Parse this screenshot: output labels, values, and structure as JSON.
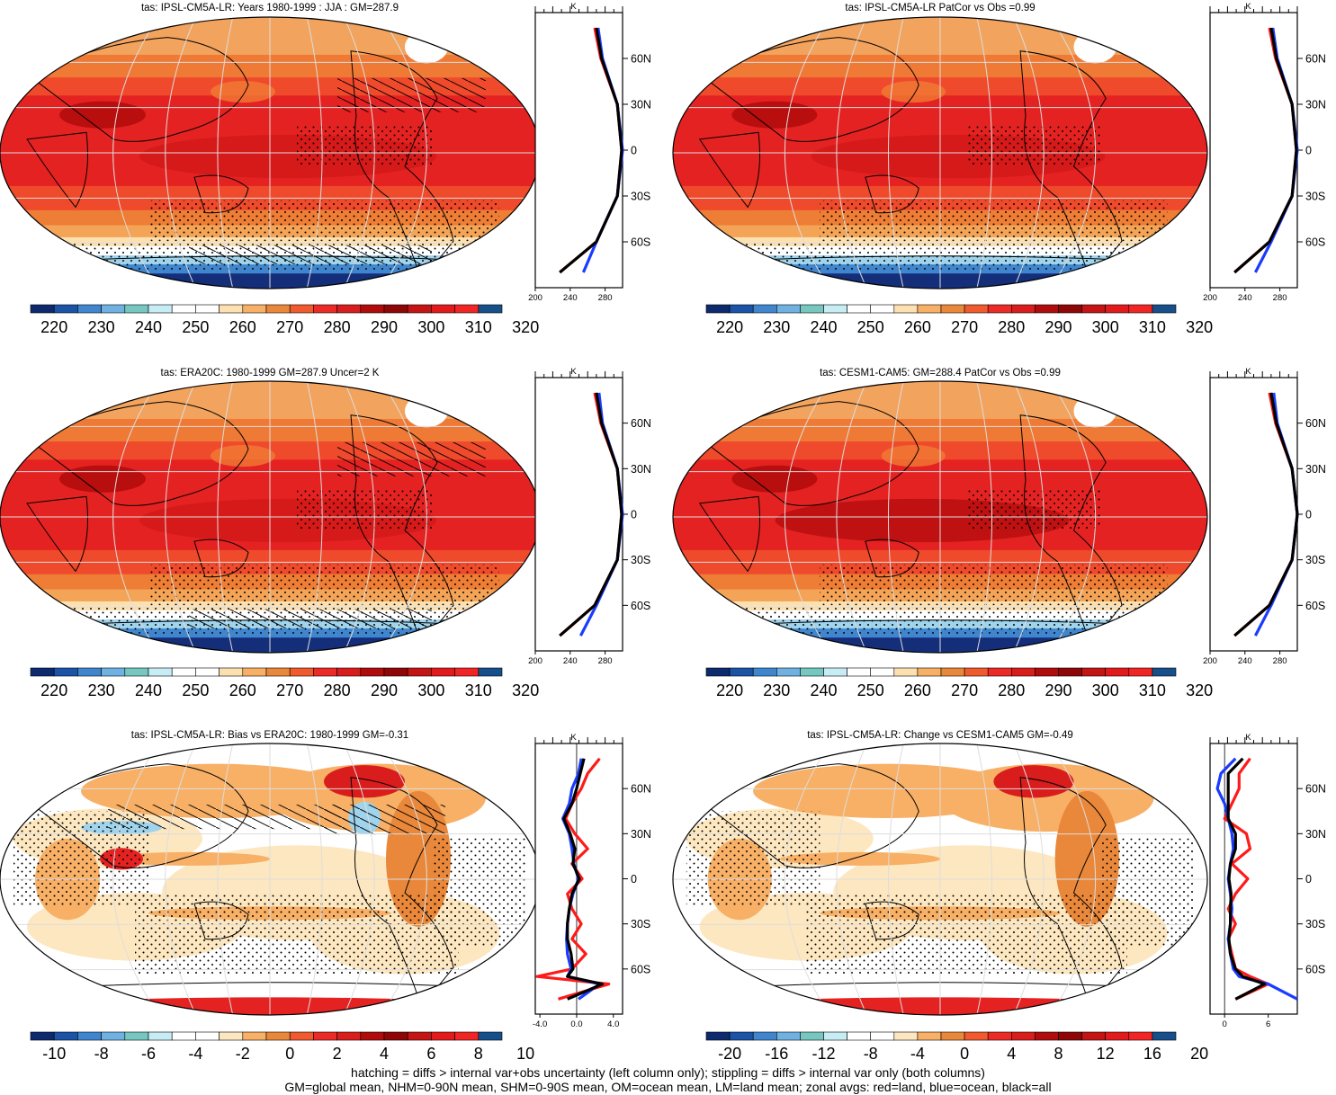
{
  "colors": {
    "abs_scale": [
      "#0d2a6e",
      "#1b53a6",
      "#3f86cf",
      "#6fb2e2",
      "#76c7c0",
      "#c6ecf4",
      "#ffffff",
      "#ffffff",
      "#fde0b0",
      "#f7b066",
      "#e9883a",
      "#f05a2e",
      "#ec2a26",
      "#d91c1c",
      "#b00c0c",
      "#8e0606",
      "#c41414",
      "#e31a1c",
      "#f22525",
      "#164f8a"
    ],
    "diff_scale": [
      "#0d2a6e",
      "#1b53a6",
      "#3f86cf",
      "#6fb2e2",
      "#76c7c0",
      "#c6ecf4",
      "#ffffff",
      "#ffffff",
      "#fde7c0",
      "#f7b066",
      "#e9883a",
      "#f05a2e",
      "#ec2a26",
      "#d91c1c",
      "#b00c0c",
      "#8e0606",
      "#c41414",
      "#e31a1c",
      "#f22525",
      "#164f8a"
    ],
    "profile_land": "#ff1a1a",
    "profile_ocean": "#1a3cff",
    "profile_all": "#000000"
  },
  "panels": [
    {
      "id": "p1",
      "title": "tas: IPSL-CM5A-LR: Years 1980-1999 : JJA : GM=287.9",
      "kind": "abs",
      "variant": 1,
      "cb_labels": [
        "220",
        "230",
        "240",
        "250",
        "260",
        "270",
        "280",
        "290",
        "300",
        "310",
        "320"
      ],
      "xticks": [
        "200",
        "240",
        "280"
      ],
      "unit": "K",
      "lat_labels": [
        "60N",
        "30N",
        "0",
        "30S",
        "60S"
      ]
    },
    {
      "id": "p2",
      "title": "tas: IPSL-CM5A-LR PatCor vs Obs =0.99",
      "kind": "abs",
      "variant": 1,
      "cb_labels": [
        "220",
        "230",
        "240",
        "250",
        "260",
        "270",
        "280",
        "290",
        "300",
        "310",
        "320"
      ],
      "xticks": [
        "200",
        "240",
        "280"
      ],
      "unit": "K",
      "lat_labels": [
        "60N",
        "30N",
        "0",
        "30S",
        "60S"
      ]
    },
    {
      "id": "p3",
      "title": "tas: ERA20C: 1980-1999 GM=287.9 Uncer=2 K",
      "kind": "abs",
      "variant": 2,
      "cb_labels": [
        "220",
        "230",
        "240",
        "250",
        "260",
        "270",
        "280",
        "290",
        "300",
        "310",
        "320"
      ],
      "xticks": [
        "200",
        "240",
        "280"
      ],
      "unit": "K",
      "lat_labels": [
        "60N",
        "30N",
        "0",
        "30S",
        "60S"
      ]
    },
    {
      "id": "p4",
      "title": "tas: CESM1-CAM5: GM=288.4 PatCor vs Obs =0.99",
      "kind": "abs",
      "variant": 3,
      "cb_labels": [
        "220",
        "230",
        "240",
        "250",
        "260",
        "270",
        "280",
        "290",
        "300",
        "310",
        "320"
      ],
      "xticks": [
        "200",
        "240",
        "280"
      ],
      "unit": "K",
      "lat_labels": [
        "60N",
        "30N",
        "0",
        "30S",
        "60S"
      ]
    },
    {
      "id": "p5",
      "title": "tas: IPSL-CM5A-LR: Bias vs ERA20C: 1980-1999 GM=-0.31",
      "kind": "diff",
      "variant": 1,
      "cb_labels": [
        "-10",
        "-8",
        "-6",
        "-4",
        "-2",
        "0",
        "2",
        "4",
        "6",
        "8",
        "10"
      ],
      "xticks": [
        "-4.0",
        "0.0",
        "4.0"
      ],
      "unit": "K",
      "lat_labels": [
        "60N",
        "30N",
        "0",
        "30S",
        "60S"
      ]
    },
    {
      "id": "p6",
      "title": "tas: IPSL-CM5A-LR: Change vs CESM1-CAM5 GM=-0.49",
      "kind": "diff",
      "variant": 2,
      "cb_labels": [
        "-20",
        "-16",
        "-12",
        "-8",
        "-4",
        "0",
        "4",
        "8",
        "12",
        "16",
        "20"
      ],
      "xticks": [
        "0",
        "6"
      ],
      "unit": "K",
      "lat_labels": [
        "60N",
        "30N",
        "0",
        "30S",
        "60S"
      ]
    }
  ],
  "footer": {
    "line1": "hatching = diffs > internal var+obs uncertainty (left column only); stippling = diffs > internal var only (both columns)",
    "line2": "GM=global mean, NHM=0-90N mean, SHM=0-90S mean, OM=ocean mean, LM=land mean; zonal avgs: red=land, blue=ocean, black=all"
  },
  "chart_data": [
    {
      "type": "heatmap",
      "title": "tas: IPSL-CM5A-LR: Years 1980-1999 : JJA : GM=287.9",
      "colorbar": [
        215,
        320
      ],
      "zonal_profile": {
        "lat": [
          80,
          60,
          30,
          0,
          -30,
          -60,
          -80
        ],
        "land": [
          268,
          275,
          294,
          299,
          294,
          270,
          228
        ],
        "ocean": [
          272,
          277,
          294,
          300,
          294,
          270,
          255
        ],
        "all": [
          270,
          276,
          294,
          299,
          294,
          270,
          228
        ],
        "xlim": [
          200,
          300
        ]
      }
    },
    {
      "type": "heatmap",
      "title": "tas: IPSL-CM5A-LR PatCor vs Obs =0.99",
      "colorbar": [
        215,
        320
      ],
      "zonal_profile": {
        "lat": [
          80,
          60,
          30,
          0,
          -30,
          -60,
          -80
        ],
        "land": [
          268,
          275,
          294,
          299,
          294,
          268,
          228
        ],
        "ocean": [
          272,
          277,
          294,
          300,
          294,
          270,
          252
        ],
        "all": [
          270,
          276,
          294,
          299,
          294,
          268,
          228
        ],
        "xlim": [
          200,
          300
        ]
      }
    },
    {
      "type": "heatmap",
      "title": "tas: ERA20C: 1980-1999 GM=287.9 Uncer=2 K",
      "colorbar": [
        215,
        320
      ],
      "zonal_profile": {
        "lat": [
          80,
          60,
          30,
          0,
          -30,
          -60,
          -80
        ],
        "land": [
          268,
          275,
          294,
          299,
          294,
          268,
          228
        ],
        "ocean": [
          273,
          277,
          294,
          300,
          294,
          270,
          252
        ],
        "all": [
          270,
          276,
          294,
          299,
          294,
          268,
          228
        ],
        "xlim": [
          200,
          300
        ]
      }
    },
    {
      "type": "heatmap",
      "title": "tas: CESM1-CAM5: GM=288.4 PatCor vs Obs =0.99",
      "colorbar": [
        215,
        320
      ],
      "zonal_profile": {
        "lat": [
          80,
          60,
          30,
          0,
          -30,
          -60,
          -80
        ],
        "land": [
          268,
          275,
          294,
          300,
          294,
          268,
          228
        ],
        "ocean": [
          273,
          277,
          294,
          300,
          294,
          270,
          252
        ],
        "all": [
          270,
          276,
          294,
          300,
          294,
          268,
          228
        ],
        "xlim": [
          200,
          300
        ]
      }
    },
    {
      "type": "heatmap",
      "title": "tas: IPSL-CM5A-LR: Bias vs ERA20C: 1980-1999 GM=-0.31",
      "colorbar": [
        -11,
        11
      ],
      "zonal_profile": {
        "lat": [
          80,
          70,
          60,
          50,
          40,
          30,
          20,
          10,
          0,
          -10,
          -20,
          -30,
          -40,
          -50,
          -60,
          -65,
          -70,
          -80
        ],
        "land": [
          2.5,
          1.2,
          0.5,
          -0.5,
          -1.2,
          -0.2,
          1.2,
          -0.5,
          0.6,
          -1.0,
          -0.5,
          0.5,
          -0.5,
          1.0,
          -0.5,
          -4.3,
          3.5,
          -2.0
        ],
        "ocean": [
          0.5,
          0.2,
          -0.5,
          -0.8,
          -1.5,
          -0.8,
          -0.5,
          -0.3,
          0.2,
          -0.4,
          -0.8,
          -1.0,
          -1.1,
          -1.0,
          -0.6,
          -1.0,
          2.5,
          0.2
        ],
        "all": [
          0.8,
          0.4,
          0.0,
          -0.5,
          -1.4,
          -0.7,
          -0.2,
          -0.4,
          0.3,
          -0.5,
          -0.8,
          -1.0,
          -1.0,
          -0.6,
          -0.4,
          -1.0,
          2.8,
          -1.0
        ],
        "xlim": [
          -4.5,
          5.0
        ]
      }
    },
    {
      "type": "heatmap",
      "title": "tas: IPSL-CM5A-LR: Change vs CESM1-CAM5 GM=-0.49",
      "colorbar": [
        -22,
        22
      ],
      "zonal_profile": {
        "lat": [
          80,
          70,
          60,
          50,
          40,
          30,
          20,
          10,
          0,
          -10,
          -20,
          -30,
          -40,
          -50,
          -60,
          -65,
          -70,
          -80
        ],
        "land": [
          3.5,
          2.0,
          2.0,
          1.0,
          0.0,
          3.0,
          3.5,
          1.0,
          3.2,
          1.5,
          0.5,
          1.5,
          0.5,
          1.0,
          1.5,
          3.5,
          6.0,
          1.5
        ],
        "ocean": [
          1.5,
          -0.5,
          -1.0,
          0.0,
          0.5,
          1.0,
          1.2,
          0.8,
          0.5,
          0.8,
          1.0,
          0.8,
          0.5,
          0.8,
          1.2,
          2.0,
          6.0,
          10.0
        ],
        "all": [
          2.5,
          0.5,
          0.5,
          0.5,
          0.5,
          1.5,
          1.5,
          0.8,
          0.6,
          0.9,
          0.8,
          0.8,
          0.6,
          0.8,
          1.5,
          2.5,
          5.5,
          1.5
        ],
        "xlim": [
          -2.0,
          10.0
        ]
      }
    }
  ]
}
